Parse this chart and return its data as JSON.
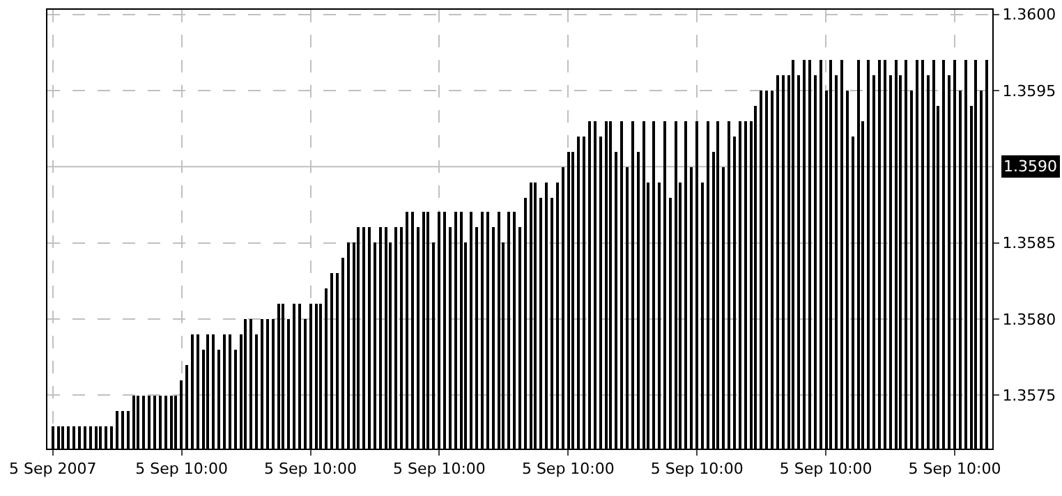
{
  "chart_data": {
    "type": "bar",
    "categories": [
      "5 Sep 2007",
      null,
      null,
      null,
      null,
      null,
      null,
      null,
      null,
      null,
      null,
      null,
      null,
      null,
      null,
      null,
      null,
      null,
      null,
      null,
      null,
      null,
      null,
      null,
      "5 Sep 10:00",
      null,
      null,
      null,
      null,
      null,
      null,
      null,
      null,
      null,
      null,
      null,
      null,
      null,
      null,
      null,
      null,
      null,
      null,
      null,
      null,
      null,
      null,
      null,
      "5 Sep 10:00",
      null,
      null,
      null,
      null,
      null,
      null,
      null,
      null,
      null,
      null,
      null,
      null,
      null,
      null,
      null,
      null,
      null,
      null,
      null,
      null,
      null,
      null,
      null,
      "5 Sep 10:00",
      null,
      null,
      null,
      null,
      null,
      null,
      null,
      null,
      null,
      null,
      null,
      null,
      null,
      null,
      null,
      null,
      null,
      null,
      null,
      null,
      null,
      null,
      null,
      "5 Sep 10:00",
      null,
      null,
      null,
      null,
      null,
      null,
      null,
      null,
      null,
      null,
      null,
      null,
      null,
      null,
      null,
      null,
      null,
      null,
      null,
      null,
      null,
      null,
      null,
      "5 Sep 10:00",
      null,
      null,
      null,
      null,
      null,
      null,
      null,
      null,
      null,
      null,
      null,
      null,
      null,
      null,
      null,
      null,
      null,
      null,
      null,
      null,
      null,
      null,
      null,
      "5 Sep 10:00",
      null,
      null,
      null,
      null,
      null,
      null,
      null,
      null,
      null,
      null,
      null,
      null,
      null,
      null,
      null,
      null,
      null,
      null,
      null,
      null,
      null,
      null,
      null,
      "5 Sep 10:00",
      null,
      null,
      null,
      null,
      null,
      null
    ],
    "values": [
      1.3573,
      1.3573,
      1.3573,
      1.3573,
      1.3573,
      1.3573,
      1.3573,
      1.3573,
      1.3573,
      1.3573,
      1.3573,
      1.3573,
      1.3574,
      1.3574,
      1.3574,
      1.3575,
      1.3575,
      1.3575,
      1.3575,
      1.3575,
      1.3575,
      1.3575,
      1.3575,
      1.3575,
      1.3576,
      1.3577,
      1.3579,
      1.3579,
      1.3578,
      1.3579,
      1.3579,
      1.3578,
      1.3579,
      1.3579,
      1.3578,
      1.3579,
      1.358,
      1.358,
      1.3579,
      1.358,
      1.358,
      1.358,
      1.3581,
      1.3581,
      1.358,
      1.3581,
      1.3581,
      1.358,
      1.3581,
      1.3581,
      1.3581,
      1.3582,
      1.3583,
      1.3583,
      1.3584,
      1.3585,
      1.3585,
      1.3586,
      1.3586,
      1.3586,
      1.3585,
      1.3586,
      1.3586,
      1.3585,
      1.3586,
      1.3586,
      1.3587,
      1.3587,
      1.3586,
      1.3587,
      1.3587,
      1.3585,
      1.3587,
      1.3587,
      1.3586,
      1.3587,
      1.3587,
      1.3585,
      1.3587,
      1.3586,
      1.3587,
      1.3587,
      1.3586,
      1.3587,
      1.3585,
      1.3587,
      1.3587,
      1.3586,
      1.3588,
      1.3589,
      1.3589,
      1.3588,
      1.3589,
      1.3588,
      1.3589,
      1.359,
      1.3591,
      1.3591,
      1.3592,
      1.3592,
      1.3593,
      1.3593,
      1.3592,
      1.3593,
      1.3593,
      1.3591,
      1.3593,
      1.359,
      1.3593,
      1.3591,
      1.3593,
      1.3589,
      1.3593,
      1.3589,
      1.3593,
      1.3588,
      1.3593,
      1.3589,
      1.3593,
      1.359,
      1.3593,
      1.3589,
      1.3593,
      1.3591,
      1.3593,
      1.359,
      1.3593,
      1.3592,
      1.3593,
      1.3593,
      1.3593,
      1.3594,
      1.3595,
      1.3595,
      1.3595,
      1.3596,
      1.3596,
      1.3596,
      1.3597,
      1.3596,
      1.3597,
      1.3597,
      1.3596,
      1.3597,
      1.3595,
      1.3597,
      1.3596,
      1.3597,
      1.3595,
      1.3592,
      1.3597,
      1.3593,
      1.3597,
      1.3596,
      1.3597,
      1.3597,
      1.3596,
      1.3597,
      1.3596,
      1.3597,
      1.3595,
      1.3597,
      1.3597,
      1.3596,
      1.3597,
      1.3594,
      1.3597,
      1.3596,
      1.3597,
      1.3595,
      1.3597,
      1.3594,
      1.3597,
      1.3595,
      1.3597
    ],
    "color": "#000000",
    "ylim": [
      1.35715,
      1.36003
    ],
    "yticks": [
      {
        "value": 1.3575,
        "label": "1.3575"
      },
      {
        "value": 1.358,
        "label": "1.3580"
      },
      {
        "value": 1.3585,
        "label": "1.3585"
      },
      {
        "value": 1.3595,
        "label": "1.3595"
      },
      {
        "value": 1.36,
        "label": "1.3600"
      }
    ],
    "ref_lines": [
      {
        "axis": "y",
        "value": 1.359,
        "label": "1.3590",
        "color": "#c0c0c0"
      }
    ],
    "grid": true
  }
}
